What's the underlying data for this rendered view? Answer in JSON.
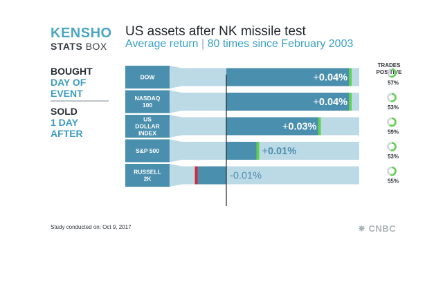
{
  "brand": {
    "line1": "KENSHO",
    "line2a": "STATS",
    "line2b": " BOX"
  },
  "header": {
    "title": "US assets after NK missile test",
    "subtitle_left": "Average return",
    "subtitle_sep": " | ",
    "subtitle_right": "80 times since February 2003"
  },
  "legend": {
    "bought_key": "BOUGHT",
    "bought_value_1": "DAY OF",
    "bought_value_2": "EVENT",
    "sold_key": "SOLD",
    "sold_value_1": "1 DAY",
    "sold_value_2": "AFTER"
  },
  "trades_header": {
    "line1": "TRADES",
    "line2": "POSITIVE"
  },
  "footnote": "Study conducted on: Oct 9, 2017",
  "source_logo": "CNBC",
  "colors": {
    "bar": "#4b8fae",
    "track": "#bcd9e6",
    "label_box": "#4b8fae",
    "positive": "#5fd04f",
    "negative": "#d8263b",
    "ring_track": "#cfd6da"
  },
  "chart_data": {
    "type": "bar",
    "orientation": "horizontal",
    "title": "US assets after NK missile test",
    "subtitle": "Average return | 80 times since February 2003",
    "categories": [
      "DOW",
      "NASDAQ 100",
      "US DOLLAR INDEX",
      "S&P 500",
      "RUSSELL 2K"
    ],
    "category_lines": [
      [
        "DOW"
      ],
      [
        "NASDAQ",
        "100"
      ],
      [
        "US",
        "DOLLAR",
        "INDEX"
      ],
      [
        "S&P 500"
      ],
      [
        "RUSSELL",
        "2K"
      ]
    ],
    "values": [
      0.04,
      0.04,
      0.03,
      0.01,
      -0.01
    ],
    "value_labels": [
      "+0.04%",
      "+0.04%",
      "+0.03%",
      "+0.01%",
      "-0.01%"
    ],
    "unit": "%",
    "xlim": [
      -0.012,
      0.04
    ],
    "trades_positive_percent": [
      57,
      53,
      59,
      53,
      55
    ],
    "trades_positive_labels": [
      "57%",
      "53%",
      "59%",
      "53%",
      "55%"
    ]
  }
}
